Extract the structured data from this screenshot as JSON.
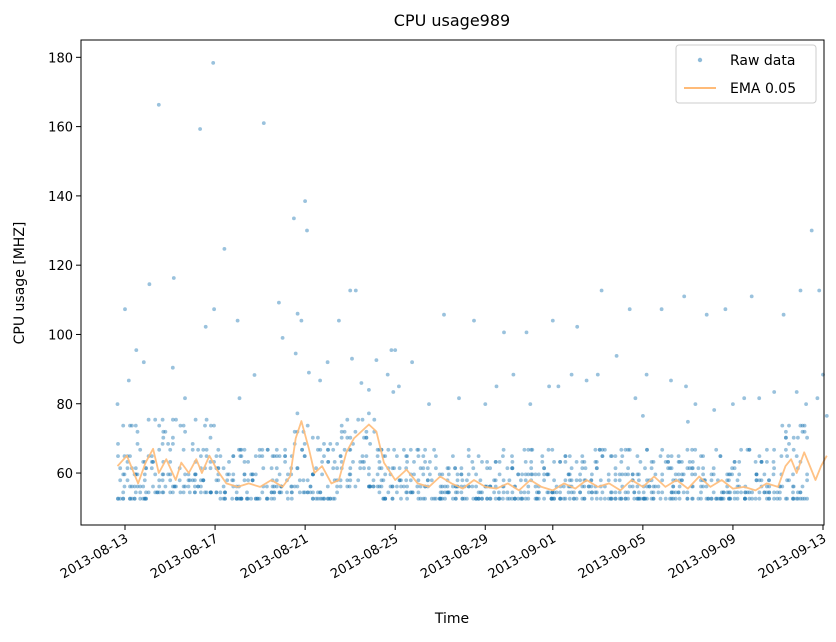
{
  "chart_data": {
    "type": "scatter",
    "title": "CPU usage989",
    "xlabel": "Time",
    "ylabel": "CPU usage [MHZ]",
    "x_range": [
      "2013-08-12",
      "2013-09-13"
    ],
    "ylim": [
      45,
      185
    ],
    "yticks": [
      60,
      80,
      100,
      120,
      140,
      160,
      180
    ],
    "xticks": [
      "2013-08-13",
      "2013-08-17",
      "2013-08-21",
      "2013-08-25",
      "2013-08-29",
      "2013-09-01",
      "2013-09-05",
      "2013-09-09",
      "2013-09-13"
    ],
    "grid": false,
    "legend_position": "upper right",
    "series": [
      {
        "name": "Raw data",
        "kind": "scatter",
        "color": "#1f77b4",
        "quantization_levels_mhz": [
          52.6,
          54.4,
          56.1,
          57.9,
          59.6,
          61.4,
          63.2,
          64.9,
          66.7,
          68.4,
          70.2,
          71.9,
          73.7,
          75.4,
          77.2
        ],
        "base_ranges": [
          {
            "from": "2013-08-12T16:00",
            "to": "2013-08-13T18:00",
            "min": 52.6,
            "max": 73.7
          },
          {
            "from": "2013-08-13T18:00",
            "to": "2013-08-14T00:00",
            "min": 52.6,
            "max": 66.7
          },
          {
            "from": "2013-08-14T00:00",
            "to": "2013-08-17T00:00",
            "min": 54.4,
            "max": 75.4
          },
          {
            "from": "2013-08-17T00:00",
            "to": "2013-08-20T12:00",
            "min": 52.6,
            "max": 66.7
          },
          {
            "from": "2013-08-20T12:00",
            "to": "2013-08-21T06:00",
            "min": 54.4,
            "max": 77.2
          },
          {
            "from": "2013-08-21T06:00",
            "to": "2013-08-22T12:00",
            "min": 52.6,
            "max": 70.2
          },
          {
            "from": "2013-08-22T12:00",
            "to": "2013-08-24T06:00",
            "min": 56.1,
            "max": 77.2
          },
          {
            "from": "2013-08-24T06:00",
            "to": "2013-09-11T00:00",
            "min": 52.6,
            "max": 66.7
          },
          {
            "from": "2013-09-11T00:00",
            "to": "2013-09-12T08:00",
            "min": 52.6,
            "max": 73.7
          }
        ],
        "outliers": [
          {
            "x": "2013-08-12T16:00",
            "y": 79.9
          },
          {
            "x": "2013-08-13T00:00",
            "y": 107.3
          },
          {
            "x": "2013-08-13T04:00",
            "y": 86.7
          },
          {
            "x": "2013-08-13T12:00",
            "y": 95.5
          },
          {
            "x": "2013-08-13T20:00",
            "y": 92.0
          },
          {
            "x": "2013-08-14T02:00",
            "y": 114.5
          },
          {
            "x": "2013-08-14T12:00",
            "y": 166.3
          },
          {
            "x": "2013-08-15T04:00",
            "y": 116.3
          },
          {
            "x": "2013-08-15T03:00",
            "y": 90.4
          },
          {
            "x": "2013-08-15T16:00",
            "y": 81.6
          },
          {
            "x": "2013-08-16T08:00",
            "y": 159.3
          },
          {
            "x": "2013-08-16T14:00",
            "y": 102.2
          },
          {
            "x": "2013-08-16T22:00",
            "y": 178.4
          },
          {
            "x": "2013-08-16T23:00",
            "y": 107.3
          },
          {
            "x": "2013-08-17T10:00",
            "y": 124.7
          },
          {
            "x": "2013-08-18T00:00",
            "y": 104.0
          },
          {
            "x": "2013-08-18T02:00",
            "y": 81.6
          },
          {
            "x": "2013-08-18T18:00",
            "y": 88.3
          },
          {
            "x": "2013-08-19T04:00",
            "y": 161.0
          },
          {
            "x": "2013-08-19T20:00",
            "y": 109.2
          },
          {
            "x": "2013-08-20T00:00",
            "y": 99.0
          },
          {
            "x": "2013-08-20T12:00",
            "y": 133.5
          },
          {
            "x": "2013-08-20T16:00",
            "y": 106.0
          },
          {
            "x": "2013-08-20T14:00",
            "y": 94.5
          },
          {
            "x": "2013-08-20T20:00",
            "y": 104.0
          },
          {
            "x": "2013-08-21T00:00",
            "y": 138.5
          },
          {
            "x": "2013-08-21T02:00",
            "y": 130.0
          },
          {
            "x": "2013-08-21T04:00",
            "y": 89.0
          },
          {
            "x": "2013-08-21T16:00",
            "y": 86.7
          },
          {
            "x": "2013-08-22T00:00",
            "y": 92.0
          },
          {
            "x": "2013-08-22T12:00",
            "y": 104.0
          },
          {
            "x": "2013-08-23T00:00",
            "y": 112.7
          },
          {
            "x": "2013-08-23T06:00",
            "y": 112.7
          },
          {
            "x": "2013-08-23T02:00",
            "y": 93.0
          },
          {
            "x": "2013-08-23T12:00",
            "y": 86.0
          },
          {
            "x": "2013-08-23T20:00",
            "y": 84.0
          },
          {
            "x": "2013-08-24T04:00",
            "y": 92.6
          },
          {
            "x": "2013-08-24T16:00",
            "y": 88.4
          },
          {
            "x": "2013-08-24T20:00",
            "y": 95.5
          },
          {
            "x": "2013-08-24T22:00",
            "y": 83.4
          },
          {
            "x": "2013-08-25T00:00",
            "y": 95.5
          },
          {
            "x": "2013-08-25T04:00",
            "y": 85.0
          },
          {
            "x": "2013-08-25T18:00",
            "y": 92.0
          },
          {
            "x": "2013-08-26T12:00",
            "y": 79.9
          },
          {
            "x": "2013-08-27T04:00",
            "y": 105.7
          },
          {
            "x": "2013-08-27T20:00",
            "y": 81.6
          },
          {
            "x": "2013-08-28T12:00",
            "y": 104.0
          },
          {
            "x": "2013-08-29T00:00",
            "y": 79.9
          },
          {
            "x": "2013-08-29T12:00",
            "y": 85.0
          },
          {
            "x": "2013-08-29T20:00",
            "y": 100.6
          },
          {
            "x": "2013-08-30T06:00",
            "y": 88.4
          },
          {
            "x": "2013-08-30T20:00",
            "y": 100.6
          },
          {
            "x": "2013-08-31T00:00",
            "y": 79.9
          },
          {
            "x": "2013-08-31T20:00",
            "y": 85.0
          },
          {
            "x": "2013-09-01T00:00",
            "y": 104.0
          },
          {
            "x": "2013-09-01T06:00",
            "y": 85.0
          },
          {
            "x": "2013-09-01T20:00",
            "y": 88.4
          },
          {
            "x": "2013-09-02T02:00",
            "y": 102.2
          },
          {
            "x": "2013-09-02T12:00",
            "y": 86.7
          },
          {
            "x": "2013-09-03T00:00",
            "y": 88.4
          },
          {
            "x": "2013-09-03T04:00",
            "y": 112.7
          },
          {
            "x": "2013-09-03T20:00",
            "y": 93.8
          },
          {
            "x": "2013-09-04T10:00",
            "y": 107.3
          },
          {
            "x": "2013-09-04T16:00",
            "y": 81.6
          },
          {
            "x": "2013-09-05T00:00",
            "y": 76.5
          },
          {
            "x": "2013-09-05T04:00",
            "y": 88.4
          },
          {
            "x": "2013-09-05T20:00",
            "y": 107.3
          },
          {
            "x": "2013-09-06T06:00",
            "y": 86.7
          },
          {
            "x": "2013-09-06T20:00",
            "y": 111.0
          },
          {
            "x": "2013-09-06T22:00",
            "y": 85.0
          },
          {
            "x": "2013-09-07T00:00",
            "y": 74.8
          },
          {
            "x": "2013-09-07T08:00",
            "y": 79.9
          },
          {
            "x": "2013-09-07T20:00",
            "y": 105.7
          },
          {
            "x": "2013-09-08T04:00",
            "y": 78.2
          },
          {
            "x": "2013-09-08T16:00",
            "y": 107.3
          },
          {
            "x": "2013-09-09T00:00",
            "y": 79.9
          },
          {
            "x": "2013-09-09T12:00",
            "y": 81.6
          },
          {
            "x": "2013-09-09T20:00",
            "y": 111.0
          },
          {
            "x": "2013-09-10T04:00",
            "y": 81.6
          },
          {
            "x": "2013-09-10T20:00",
            "y": 83.4
          },
          {
            "x": "2013-09-11T06:00",
            "y": 105.7
          },
          {
            "x": "2013-09-11T20:00",
            "y": 83.4
          },
          {
            "x": "2013-09-12T00:00",
            "y": 112.7
          },
          {
            "x": "2013-09-12T06:00",
            "y": 79.9
          },
          {
            "x": "2013-09-12T12:00",
            "y": 130.0
          },
          {
            "x": "2013-09-12T18:00",
            "y": 81.6
          },
          {
            "x": "2013-09-12T20:00",
            "y": 112.7
          },
          {
            "x": "2013-09-13T00:00",
            "y": 88.4
          },
          {
            "x": "2013-09-13T04:00",
            "y": 76.5
          }
        ]
      },
      {
        "name": "EMA 0.05",
        "kind": "line",
        "color": "#ffbb78",
        "points": [
          {
            "x": "2013-08-12T16:00",
            "y": 62
          },
          {
            "x": "2013-08-13T02:00",
            "y": 65
          },
          {
            "x": "2013-08-13T08:00",
            "y": 61
          },
          {
            "x": "2013-08-13T14:00",
            "y": 57
          },
          {
            "x": "2013-08-13T22:00",
            "y": 63
          },
          {
            "x": "2013-08-14T06:00",
            "y": 67
          },
          {
            "x": "2013-08-14T12:00",
            "y": 60
          },
          {
            "x": "2013-08-14T20:00",
            "y": 64
          },
          {
            "x": "2013-08-15T06:00",
            "y": 58
          },
          {
            "x": "2013-08-15T12:00",
            "y": 63
          },
          {
            "x": "2013-08-15T20:00",
            "y": 60
          },
          {
            "x": "2013-08-16T04:00",
            "y": 64
          },
          {
            "x": "2013-08-16T10:00",
            "y": 60
          },
          {
            "x": "2013-08-16T18:00",
            "y": 65
          },
          {
            "x": "2013-08-17T02:00",
            "y": 61
          },
          {
            "x": "2013-08-17T12:00",
            "y": 57
          },
          {
            "x": "2013-08-18T00:00",
            "y": 56
          },
          {
            "x": "2013-08-18T12:00",
            "y": 57
          },
          {
            "x": "2013-08-19T00:00",
            "y": 56
          },
          {
            "x": "2013-08-19T12:00",
            "y": 58
          },
          {
            "x": "2013-08-20T00:00",
            "y": 56
          },
          {
            "x": "2013-08-20T08:00",
            "y": 59
          },
          {
            "x": "2013-08-20T14:00",
            "y": 70
          },
          {
            "x": "2013-08-20T20:00",
            "y": 75
          },
          {
            "x": "2013-08-21T04:00",
            "y": 67
          },
          {
            "x": "2013-08-21T10:00",
            "y": 60
          },
          {
            "x": "2013-08-21T18:00",
            "y": 62
          },
          {
            "x": "2013-08-22T04:00",
            "y": 57
          },
          {
            "x": "2013-08-22T12:00",
            "y": 58
          },
          {
            "x": "2013-08-22T20:00",
            "y": 66
          },
          {
            "x": "2013-08-23T04:00",
            "y": 70
          },
          {
            "x": "2013-08-23T12:00",
            "y": 72
          },
          {
            "x": "2013-08-23T20:00",
            "y": 74
          },
          {
            "x": "2013-08-24T04:00",
            "y": 72
          },
          {
            "x": "2013-08-24T12:00",
            "y": 63
          },
          {
            "x": "2013-08-25T00:00",
            "y": 58
          },
          {
            "x": "2013-08-25T12:00",
            "y": 61
          },
          {
            "x": "2013-08-26T00:00",
            "y": 57
          },
          {
            "x": "2013-08-26T12:00",
            "y": 56
          },
          {
            "x": "2013-08-27T00:00",
            "y": 59
          },
          {
            "x": "2013-08-27T12:00",
            "y": 57
          },
          {
            "x": "2013-08-28T00:00",
            "y": 55.5
          },
          {
            "x": "2013-08-28T12:00",
            "y": 58
          },
          {
            "x": "2013-08-29T00:00",
            "y": 56
          },
          {
            "x": "2013-08-29T12:00",
            "y": 55.5
          },
          {
            "x": "2013-08-30T00:00",
            "y": 57
          },
          {
            "x": "2013-08-30T12:00",
            "y": 55
          },
          {
            "x": "2013-08-31T00:00",
            "y": 58
          },
          {
            "x": "2013-08-31T12:00",
            "y": 56
          },
          {
            "x": "2013-09-01T00:00",
            "y": 55
          },
          {
            "x": "2013-09-01T12:00",
            "y": 57
          },
          {
            "x": "2013-09-02T00:00",
            "y": 55.5
          },
          {
            "x": "2013-09-02T12:00",
            "y": 58
          },
          {
            "x": "2013-09-03T00:00",
            "y": 56
          },
          {
            "x": "2013-09-03T12:00",
            "y": 57
          },
          {
            "x": "2013-09-04T00:00",
            "y": 55
          },
          {
            "x": "2013-09-04T12:00",
            "y": 58
          },
          {
            "x": "2013-09-05T00:00",
            "y": 56
          },
          {
            "x": "2013-09-05T12:00",
            "y": 59
          },
          {
            "x": "2013-09-06T00:00",
            "y": 56
          },
          {
            "x": "2013-09-06T12:00",
            "y": 58
          },
          {
            "x": "2013-09-07T00:00",
            "y": 55.5
          },
          {
            "x": "2013-09-07T12:00",
            "y": 59
          },
          {
            "x": "2013-09-08T00:00",
            "y": 56
          },
          {
            "x": "2013-09-08T12:00",
            "y": 58
          },
          {
            "x": "2013-09-09T00:00",
            "y": 55.5
          },
          {
            "x": "2013-09-09T12:00",
            "y": 56
          },
          {
            "x": "2013-09-10T00:00",
            "y": 55
          },
          {
            "x": "2013-09-10T12:00",
            "y": 57
          },
          {
            "x": "2013-09-11T00:00",
            "y": 56
          },
          {
            "x": "2013-09-11T08:00",
            "y": 62
          },
          {
            "x": "2013-09-11T14:00",
            "y": 64
          },
          {
            "x": "2013-09-11T20:00",
            "y": 60
          },
          {
            "x": "2013-09-12T04:00",
            "y": 66
          },
          {
            "x": "2013-09-12T10:00",
            "y": 62
          },
          {
            "x": "2013-09-12T16:00",
            "y": 58
          },
          {
            "x": "2013-09-12T22:00",
            "y": 62
          },
          {
            "x": "2013-09-13T04:00",
            "y": 65
          }
        ]
      }
    ]
  }
}
